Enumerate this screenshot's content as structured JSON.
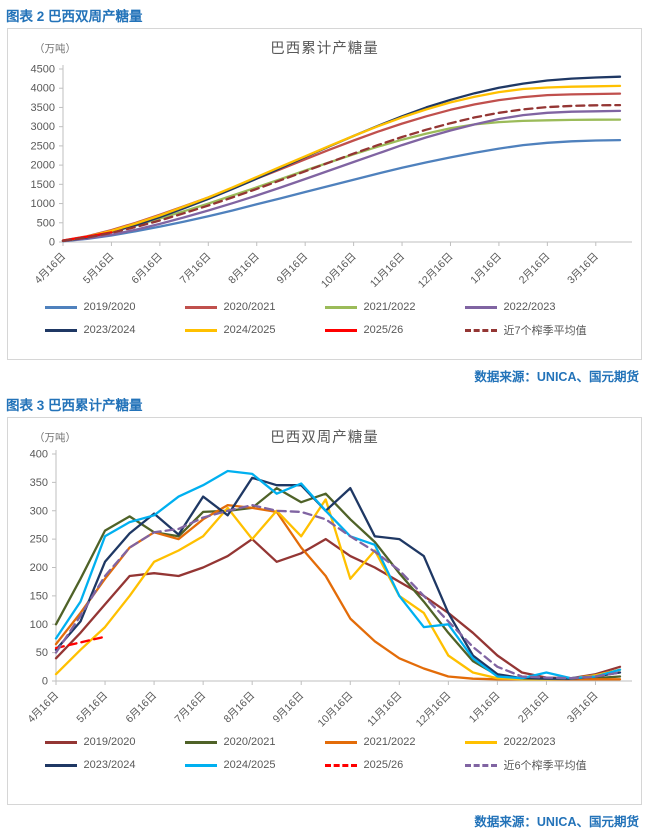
{
  "figures": [
    {
      "caption": "图表 2 巴西双周产糖量",
      "source": "数据来源：UNICA、国元期货"
    },
    {
      "caption": "图表 3 巴西累计产糖量",
      "source": "数据来源：UNICA、国元期货"
    }
  ],
  "chart_data": [
    {
      "type": "line",
      "title": "巴西累计产糖量",
      "unit": "（万吨）",
      "ylim": [
        0,
        4500
      ],
      "ytick_step": 500,
      "grid": false,
      "legend_position": "bottom",
      "categories": [
        "4月16日",
        "",
        "5月16日",
        "",
        "6月16日",
        "",
        "7月16日",
        "",
        "8月16日",
        "",
        "9月16日",
        "",
        "10月16日",
        "",
        "11月16日",
        "",
        "12月16日",
        "",
        "1月16日",
        "",
        "2月16日",
        "",
        "3月16日",
        ""
      ],
      "series": [
        {
          "name": "2019/2020",
          "color": "#4F81BD",
          "dash": false,
          "values": [
            20,
            80,
            170,
            280,
            400,
            530,
            670,
            820,
            980,
            1140,
            1300,
            1460,
            1620,
            1780,
            1930,
            2070,
            2200,
            2320,
            2430,
            2520,
            2580,
            2620,
            2640,
            2650
          ]
        },
        {
          "name": "2020/2021",
          "color": "#C0504D",
          "dash": false,
          "values": [
            40,
            150,
            310,
            500,
            710,
            930,
            1160,
            1400,
            1650,
            1900,
            2150,
            2400,
            2640,
            2870,
            3080,
            3270,
            3440,
            3580,
            3690,
            3770,
            3820,
            3840,
            3850,
            3860
          ]
        },
        {
          "name": "2021/2022",
          "color": "#9BBB59",
          "dash": false,
          "values": [
            35,
            130,
            270,
            430,
            610,
            800,
            1000,
            1210,
            1420,
            1640,
            1860,
            2070,
            2280,
            2480,
            2660,
            2820,
            2960,
            3060,
            3120,
            3150,
            3165,
            3175,
            3180,
            3185
          ]
        },
        {
          "name": "2022/2023",
          "color": "#8064A2",
          "dash": false,
          "values": [
            25,
            90,
            190,
            320,
            470,
            640,
            820,
            1010,
            1210,
            1420,
            1640,
            1860,
            2080,
            2300,
            2520,
            2720,
            2900,
            3060,
            3200,
            3300,
            3360,
            3390,
            3400,
            3410
          ]
        },
        {
          "name": "2023/2024",
          "color": "#1F3864",
          "dash": false,
          "values": [
            30,
            120,
            260,
            440,
            650,
            880,
            1120,
            1380,
            1650,
            1930,
            2210,
            2490,
            2760,
            3020,
            3270,
            3500,
            3700,
            3870,
            4010,
            4120,
            4200,
            4250,
            4280,
            4300
          ]
        },
        {
          "name": "2024/2025",
          "color": "#FFC000",
          "dash": false,
          "values": [
            35,
            140,
            290,
            480,
            690,
            920,
            1160,
            1420,
            1690,
            1960,
            2230,
            2500,
            2760,
            3010,
            3240,
            3450,
            3630,
            3780,
            3900,
            3980,
            4020,
            4040,
            4050,
            4060
          ]
        },
        {
          "name": "2025/26",
          "color": "#FF0000",
          "dash": false,
          "values": [
            40,
            140,
            250
          ]
        },
        {
          "name": "近7个榨季平均值",
          "color": "#943634",
          "dash": true,
          "values": [
            30,
            115,
            240,
            390,
            560,
            750,
            950,
            1160,
            1380,
            1610,
            1840,
            2070,
            2300,
            2520,
            2730,
            2920,
            3090,
            3240,
            3360,
            3450,
            3510,
            3540,
            3555,
            3560
          ]
        }
      ]
    },
    {
      "type": "line",
      "title": "巴西双周产糖量",
      "unit": "（万吨）",
      "ylim": [
        0,
        400
      ],
      "ytick_step": 50,
      "grid": false,
      "legend_position": "bottom",
      "categories": [
        "4月16日",
        "",
        "5月16日",
        "",
        "6月16日",
        "",
        "7月16日",
        "",
        "8月16日",
        "",
        "9月16日",
        "",
        "10月16日",
        "",
        "11月16日",
        "",
        "12月16日",
        "",
        "1月16日",
        "",
        "2月16日",
        "",
        "3月16日",
        ""
      ],
      "series": [
        {
          "name": "2019/2020",
          "color": "#943634",
          "dash": false,
          "values": [
            40,
            85,
            135,
            185,
            190,
            185,
            200,
            220,
            250,
            210,
            225,
            250,
            220,
            200,
            175,
            150,
            120,
            85,
            45,
            15,
            6,
            5,
            12,
            25
          ]
        },
        {
          "name": "2020/2021",
          "color": "#4F6228",
          "dash": false,
          "values": [
            100,
            180,
            265,
            290,
            262,
            255,
            298,
            300,
            305,
            340,
            315,
            330,
            285,
            245,
            190,
            140,
            85,
            35,
            10,
            4,
            3,
            3,
            5,
            8
          ]
        },
        {
          "name": "2021/2022",
          "color": "#E36C09",
          "dash": false,
          "values": [
            65,
            120,
            180,
            235,
            262,
            250,
            285,
            310,
            305,
            298,
            235,
            185,
            110,
            70,
            40,
            22,
            8,
            4,
            3,
            3,
            3,
            3,
            3,
            3
          ]
        },
        {
          "name": "2022/2023",
          "color": "#FFC000",
          "dash": false,
          "values": [
            12,
            55,
            95,
            150,
            210,
            230,
            255,
            305,
            250,
            300,
            255,
            320,
            180,
            230,
            150,
            120,
            45,
            15,
            5,
            3,
            3,
            4,
            10,
            20
          ]
        },
        {
          "name": "2023/2024",
          "color": "#1F3864",
          "dash": false,
          "values": [
            55,
            105,
            210,
            260,
            295,
            258,
            325,
            292,
            358,
            345,
            345,
            300,
            340,
            255,
            250,
            220,
            120,
            45,
            12,
            5,
            4,
            4,
            8,
            15
          ]
        },
        {
          "name": "2024/2025",
          "color": "#00B0F0",
          "dash": false,
          "values": [
            75,
            140,
            255,
            280,
            292,
            325,
            345,
            370,
            365,
            330,
            348,
            300,
            255,
            240,
            150,
            95,
            100,
            40,
            8,
            5,
            15,
            5,
            8,
            20
          ]
        },
        {
          "name": "2025/26",
          "color": "#FF0000",
          "dash": true,
          "values": [
            58,
            68,
            78
          ]
        },
        {
          "name": "近6个榨季平均值",
          "color": "#8064A2",
          "dash": true,
          "values": [
            50,
            115,
            185,
            235,
            262,
            268,
            288,
            300,
            310,
            300,
            298,
            285,
            255,
            228,
            195,
            150,
            105,
            60,
            25,
            8,
            6,
            5,
            8,
            15
          ]
        }
      ]
    }
  ]
}
